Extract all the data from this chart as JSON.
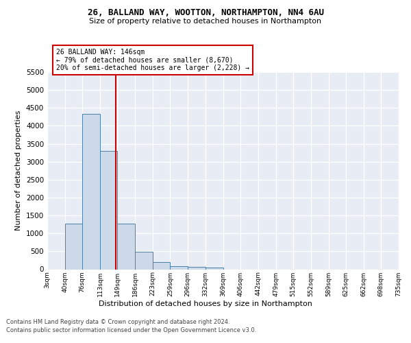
{
  "title1": "26, BALLAND WAY, WOOTTON, NORTHAMPTON, NN4 6AU",
  "title2": "Size of property relative to detached houses in Northampton",
  "xlabel": "Distribution of detached houses by size in Northampton",
  "ylabel": "Number of detached properties",
  "footnote1": "Contains HM Land Registry data © Crown copyright and database right 2024.",
  "footnote2": "Contains public sector information licensed under the Open Government Licence v3.0.",
  "annotation_line1": "26 BALLAND WAY: 146sqm",
  "annotation_line2": "← 79% of detached houses are smaller (8,670)",
  "annotation_line3": "20% of semi-detached houses are larger (2,228) →",
  "property_size": 146,
  "bar_color": "#ccd9e8",
  "bar_edge_color": "#4e80a8",
  "vline_color": "#cc0000",
  "background_color": "#e8edf5",
  "grid_color": "#ffffff",
  "bin_edges": [
    3,
    40,
    76,
    113,
    149,
    186,
    223,
    259,
    296,
    332,
    369,
    406,
    442,
    479,
    515,
    552,
    589,
    625,
    662,
    698,
    735
  ],
  "bin_counts": [
    0,
    1270,
    4330,
    3300,
    1280,
    490,
    210,
    90,
    60,
    55,
    0,
    0,
    0,
    0,
    0,
    0,
    0,
    0,
    0,
    0
  ],
  "ylim_max": 5500,
  "yticks": [
    0,
    500,
    1000,
    1500,
    2000,
    2500,
    3000,
    3500,
    4000,
    4500,
    5000,
    5500
  ],
  "figsize": [
    6.0,
    5.0
  ],
  "dpi": 100
}
